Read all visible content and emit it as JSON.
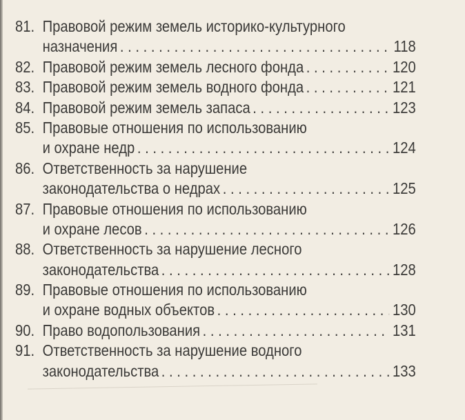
{
  "entries": [
    {
      "number": "81.",
      "lines": [
        "Правовой режим земель историко-культурного",
        "назначения"
      ],
      "page": "118"
    },
    {
      "number": "82.",
      "lines": [
        "Правовой режим земель лесного фонда"
      ],
      "page": "120"
    },
    {
      "number": "83.",
      "lines": [
        "Правовой режим земель водного фонда"
      ],
      "page": "121"
    },
    {
      "number": "84.",
      "lines": [
        "Правовой режим земель запаса"
      ],
      "page": "123"
    },
    {
      "number": "85.",
      "lines": [
        "Правовые отношения по использованию",
        "и охране недр"
      ],
      "page": "124"
    },
    {
      "number": "86.",
      "lines": [
        "Ответственность за нарушение",
        "законодательства о недрах"
      ],
      "page": "125"
    },
    {
      "number": "87.",
      "lines": [
        "Правовые отношения по использованию",
        "и охране лесов"
      ],
      "page": "126"
    },
    {
      "number": "88.",
      "lines": [
        "Ответственность за нарушение лесного",
        "законодательства"
      ],
      "page": "128"
    },
    {
      "number": "89.",
      "lines": [
        "Правовые отношения по использованию",
        "и охране водных объектов"
      ],
      "page": "130"
    },
    {
      "number": "90.",
      "lines": [
        "Право водопользования"
      ],
      "page": "131"
    },
    {
      "number": "91.",
      "lines": [
        "Ответственность за нарушение водного",
        "законодательства"
      ],
      "page": "133"
    }
  ]
}
